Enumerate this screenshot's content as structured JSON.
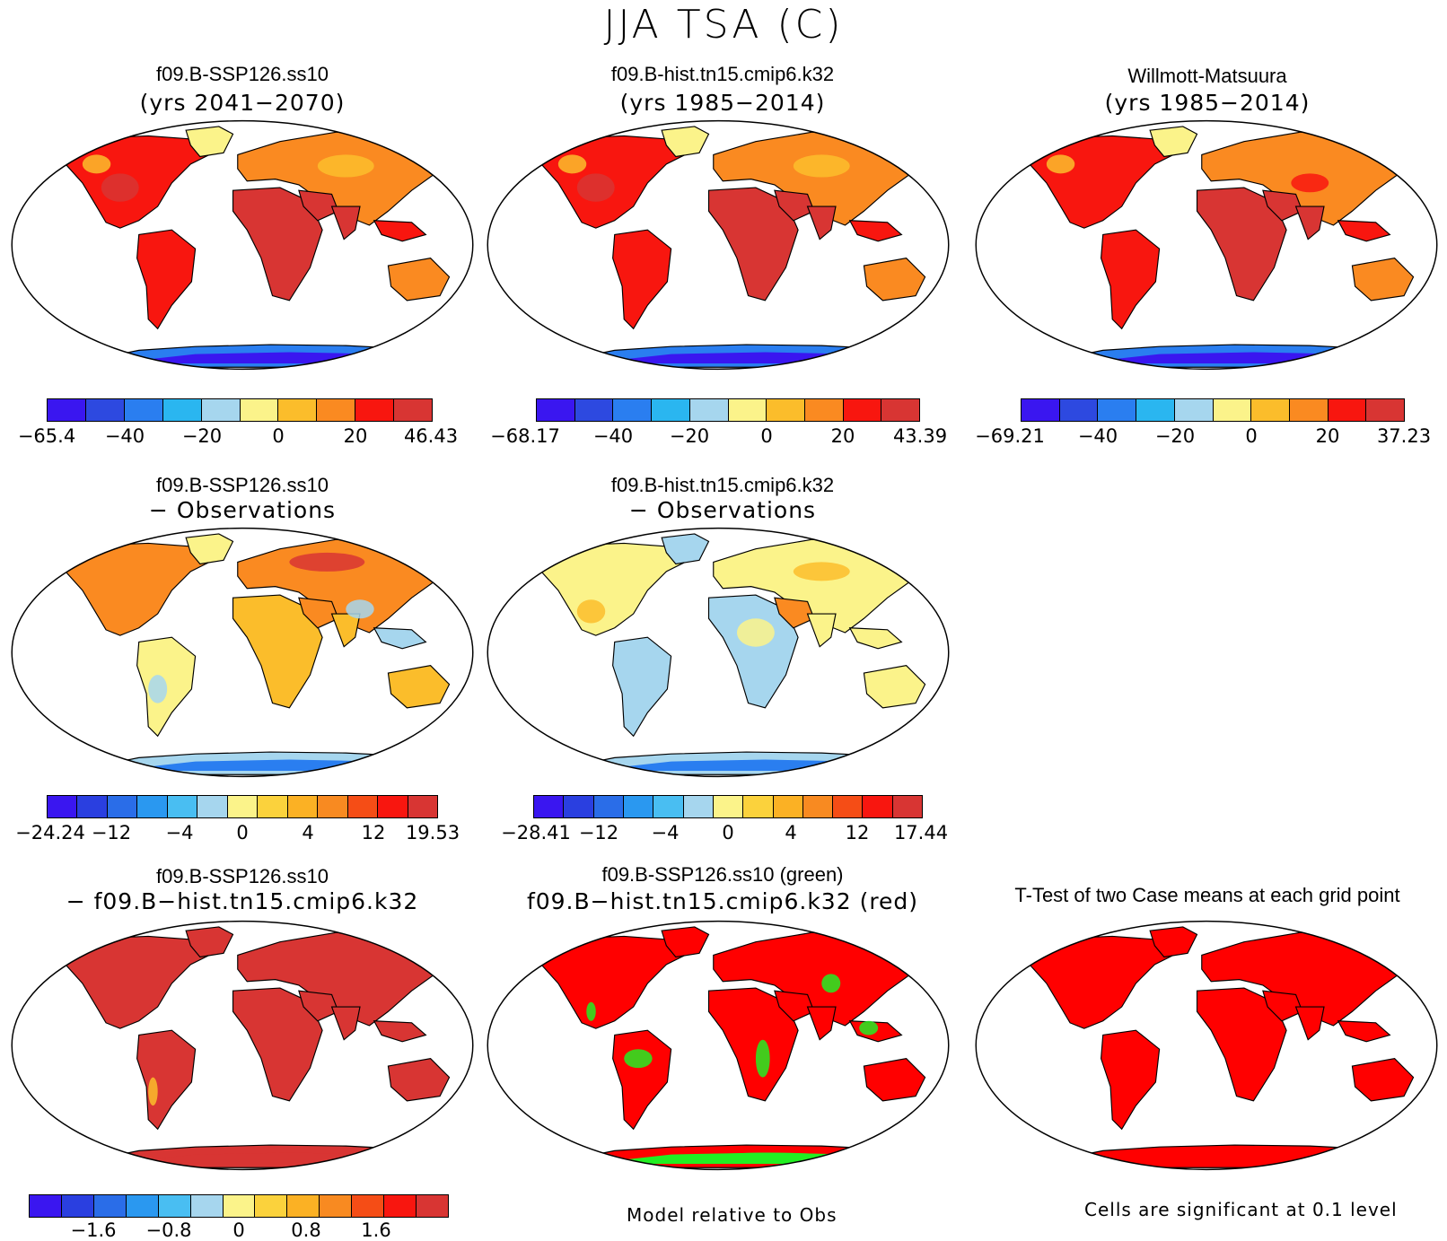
{
  "figure": {
    "title": "JJA TSA (C)"
  },
  "palettes": {
    "abs": [
      "#3a16f0",
      "#2d49e0",
      "#2a7ef0",
      "#2ab6f0",
      "#a6d6ee",
      "#fbf38a",
      "#fbbd2b",
      "#fa8a21",
      "#f8160f",
      "#d83533"
    ],
    "diff": [
      "#3a16f0",
      "#2a3fe0",
      "#2a6de8",
      "#2a98f0",
      "#49bef2",
      "#a6d6ee",
      "#fbf38a",
      "#fbd23c",
      "#fbb124",
      "#f88a21",
      "#f54d16",
      "#f8160f",
      "#d83533"
    ],
    "map_land": {
      "hot": "#d83533",
      "warm": "#f8160f",
      "orange": "#fa8a21",
      "lorange": "#fbbd2b",
      "yellow": "#fbf38a",
      "lblue": "#a6d6ee",
      "blue": "#2a7ef0",
      "dblue": "#3a16f0",
      "green": "#22ee22",
      "red": "#ff0000"
    }
  },
  "panels": [
    {
      "title": "f09.B-SSP126.ss10",
      "subtitle": "(yrs 2041−2070)",
      "scheme": "abs_model",
      "colorbar": {
        "palette": "abs",
        "ticks": [
          "−65.4",
          "−40",
          "−20",
          "0",
          "20",
          "46.43"
        ]
      }
    },
    {
      "title": "f09.B-hist.tn15.cmip6.k32",
      "subtitle": "(yrs 1985−2014)",
      "scheme": "abs_model",
      "colorbar": {
        "palette": "abs",
        "ticks": [
          "−68.17",
          "−40",
          "−20",
          "0",
          "20",
          "43.39"
        ]
      }
    },
    {
      "title": "Willmott-Matsuura",
      "subtitle": "(yrs 1985−2014)",
      "scheme": "abs_obs",
      "colorbar": {
        "palette": "abs",
        "ticks": [
          "−69.21",
          "−40",
          "−20",
          "0",
          "20",
          "37.23"
        ]
      }
    },
    {
      "title": "f09.B-SSP126.ss10",
      "subtitle": "− Observations",
      "scheme": "diff_warm",
      "colorbar": {
        "palette": "diff",
        "ticks": [
          "−24.24",
          "−12",
          "−4",
          "0",
          "4",
          "12",
          "19.53"
        ]
      }
    },
    {
      "title": "f09.B-hist.tn15.cmip6.k32",
      "subtitle": "− Observations",
      "scheme": "diff_mixed",
      "colorbar": {
        "palette": "diff",
        "ticks": [
          "−28.41",
          "−12",
          "−4",
          "0",
          "4",
          "12",
          "17.44"
        ]
      }
    },
    {
      "title": "f09.B-SSP126.ss10",
      "subtitle": "− f09.B−hist.tn15.cmip6.k32",
      "scheme": "diff_case",
      "colorbar": {
        "palette": "diff",
        "ticks": [
          "−1.6",
          "−0.8",
          "0",
          "0.8",
          "1.6"
        ]
      }
    },
    {
      "title": "f09.B-SSP126.ss10 (green)",
      "subtitle": "f09.B−hist.tn15.cmip6.k32 (red)",
      "scheme": "green_red"
    },
    {
      "title": "T-Test of two Case means at each grid point",
      "subtitle": "",
      "scheme": "ttest"
    }
  ],
  "notes": {
    "model_relative": "Model relative to Obs",
    "significance": "Cells are significant at 0.1 level"
  }
}
